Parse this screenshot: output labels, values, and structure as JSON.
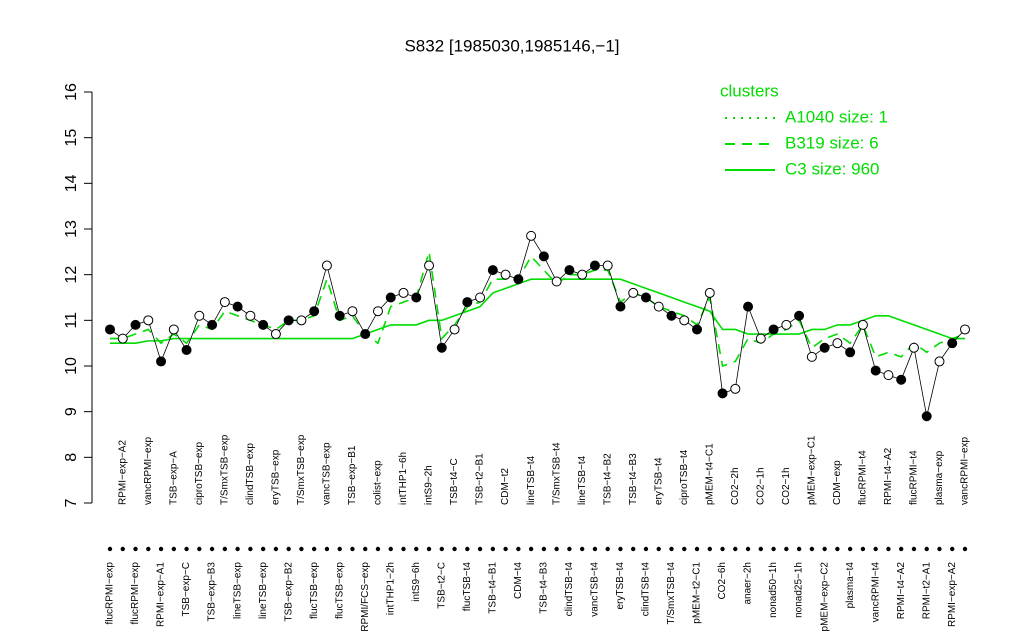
{
  "chart_data": {
    "type": "line",
    "title": "S832 [1985030,1985146,−1]",
    "ylim": [
      7,
      16
    ],
    "yticks": [
      7,
      8,
      9,
      10,
      11,
      12,
      13,
      14,
      15,
      16
    ],
    "legend_title": "clusters",
    "legend_position": "top-right",
    "categories": [
      "flucRPMI−exp",
      "RPMI−exp−A2",
      "flucRPMI−exp",
      "vancRPMI−exp",
      "RPMI−exp−A1",
      "TSB−exp−A",
      "TSB−exp−C",
      "ciproTSB−exp",
      "TSB−exp−B3",
      "T/SmxTSB−exp",
      "lineTSB−exp",
      "clindTSB−exp",
      "lineTSB−exp",
      "eryTSB−exp",
      "TSB−exp−B2",
      "T/SmxTSB−exp",
      "flucTSB−exp",
      "vancTSB−exp",
      "flucTSB−exp",
      "TSB−exp−B1",
      "RPMI/FCS−exp",
      "colist−exp",
      "intTHP1−2h",
      "intTHP1−6h",
      "intS9−6h",
      "intS9−2h",
      "TSB−t2−C",
      "TSB−t4−C",
      "flucTSB−t4",
      "TSB−t2−B1",
      "TSB−t4−B1",
      "CDM−t2",
      "CDM−t4",
      "lineTSB−t4",
      "TSB−t4−B3",
      "T/SmxTSB−t4",
      "clindTSB−t4",
      "lineTSB−t4",
      "vancTSB−t4",
      "TSB−t4−B2",
      "eryTSB−t4",
      "TSB−t4−B3",
      "clindTSB−t4",
      "eryTSB−t4",
      "T/SmxTSB−t4",
      "ciproTSB−t4",
      "pMEM−t2−C1",
      "pMEM−t4−C1",
      "CO2−6h",
      "CO2−2h",
      "anaer−2h",
      "CO2−1h",
      "nonad50−1h",
      "CO2−1h",
      "nonad25−1h",
      "pMEM−exp−C1",
      "pMEM−exp−C2",
      "CDM−exp",
      "plasma−t4",
      "flucRPMI−t4",
      "vancRPMI−t4",
      "RPMI−t4−A2",
      "RPMI−t4−A2",
      "flucRPMI−t4",
      "RPMI−t2−A1",
      "plasma−exp",
      "RPMI−exp−A2",
      "vancRPMI−exp"
    ],
    "points": {
      "color": "#000000",
      "values": [
        10.8,
        10.6,
        10.9,
        11.0,
        10.1,
        10.8,
        10.35,
        11.1,
        10.9,
        11.4,
        11.3,
        11.1,
        10.9,
        10.7,
        11.0,
        11.0,
        11.2,
        12.2,
        11.1,
        11.2,
        10.7,
        11.2,
        11.5,
        11.6,
        11.5,
        12.2,
        10.4,
        10.8,
        11.4,
        11.5,
        12.1,
        12.0,
        11.9,
        12.85,
        12.4,
        11.85,
        12.1,
        12.0,
        12.2,
        12.2,
        11.3,
        11.6,
        11.5,
        11.3,
        11.1,
        11.0,
        10.8,
        11.6,
        9.4,
        9.5,
        11.3,
        10.6,
        10.8,
        10.9,
        11.1,
        10.2,
        10.4,
        10.5,
        10.3,
        10.9,
        9.9,
        9.8,
        9.7,
        10.4,
        8.9,
        10.1,
        10.5,
        10.8
      ]
    },
    "series": [
      {
        "name": "A1040 size: 1",
        "color": "#00dd00",
        "dash": "dotted",
        "values": [
          null,
          null,
          null,
          null,
          null,
          null,
          null,
          null,
          null,
          null,
          null,
          null,
          null,
          null,
          null,
          null,
          null,
          null,
          null,
          null,
          null,
          null,
          null,
          null,
          null,
          null,
          null,
          null,
          null,
          null,
          null,
          null,
          null,
          null,
          null,
          null,
          null,
          null,
          null,
          null,
          null,
          null,
          null,
          null,
          null,
          null,
          null,
          null,
          null,
          null,
          null,
          null,
          null,
          null,
          null,
          null,
          null,
          null,
          null,
          null,
          null,
          null,
          null,
          null,
          null,
          null,
          null,
          null
        ]
      },
      {
        "name": "B319 size: 6",
        "color": "#00dd00",
        "dash": "dashed",
        "values": [
          10.6,
          10.6,
          10.7,
          10.8,
          10.5,
          10.7,
          10.5,
          10.9,
          10.8,
          11.2,
          11.1,
          11.0,
          10.9,
          10.8,
          11.0,
          11.0,
          11.1,
          11.9,
          11.0,
          11.1,
          10.7,
          10.5,
          11.3,
          11.4,
          11.5,
          12.5,
          10.6,
          10.9,
          11.3,
          11.4,
          11.9,
          11.9,
          11.9,
          12.4,
          12.1,
          11.8,
          12.0,
          12.0,
          12.1,
          12.1,
          11.4,
          11.6,
          11.5,
          11.3,
          11.2,
          11.1,
          10.9,
          11.5,
          10.0,
          10.1,
          10.6,
          10.5,
          10.7,
          10.8,
          11.0,
          10.4,
          10.6,
          10.7,
          10.5,
          10.9,
          10.2,
          10.3,
          10.2,
          10.5,
          10.3,
          10.5,
          10.6,
          10.7
        ]
      },
      {
        "name": "C3 size: 960",
        "color": "#00dd00",
        "dash": "solid",
        "values": [
          10.5,
          10.5,
          10.5,
          10.55,
          10.55,
          10.6,
          10.6,
          10.6,
          10.6,
          10.6,
          10.6,
          10.6,
          10.6,
          10.6,
          10.6,
          10.6,
          10.6,
          10.6,
          10.6,
          10.6,
          10.7,
          10.8,
          10.9,
          10.9,
          10.9,
          11.0,
          11.0,
          11.1,
          11.2,
          11.3,
          11.6,
          11.7,
          11.8,
          11.9,
          11.9,
          11.9,
          11.9,
          11.9,
          11.9,
          11.9,
          11.9,
          11.8,
          11.7,
          11.6,
          11.5,
          11.4,
          11.3,
          11.2,
          10.8,
          10.8,
          10.7,
          10.7,
          10.7,
          10.7,
          10.7,
          10.8,
          10.8,
          10.9,
          10.9,
          11.0,
          11.1,
          11.1,
          11.0,
          10.9,
          10.8,
          10.7,
          10.6,
          10.6
        ]
      }
    ]
  }
}
